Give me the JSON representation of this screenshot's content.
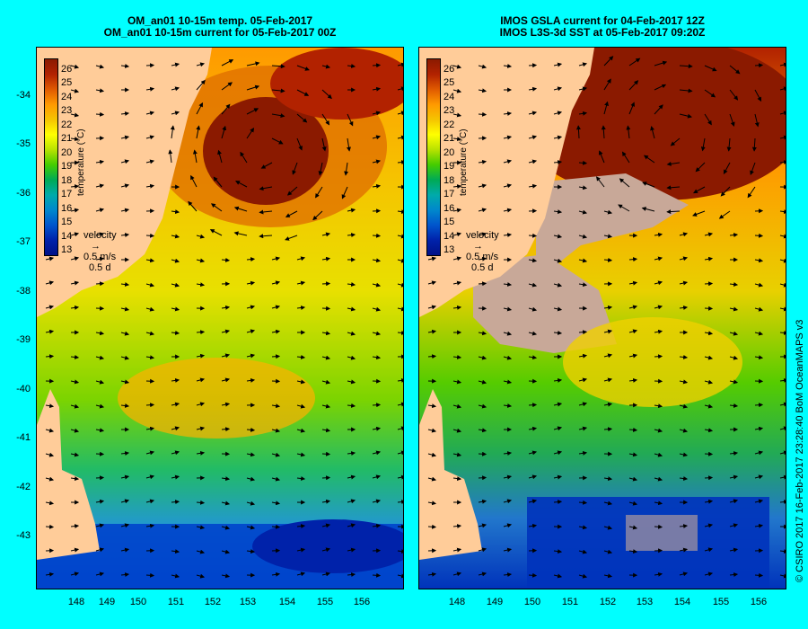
{
  "left": {
    "title_line1": "OM_an01 10-15m temp. 05-Feb-2017",
    "title_line2": "OM_an01 10-15m current for 05-Feb-2017 00Z"
  },
  "right": {
    "title_line1": "IMOS GSLA current for 04-Feb-2017 12Z",
    "title_line2": "IMOS L3S-3d SST at 05-Feb-2017 09:20Z"
  },
  "colorbar": {
    "labels": [
      "26",
      "25",
      "24",
      "23",
      "22",
      "21",
      "20",
      "19",
      "18",
      "17",
      "16",
      "15",
      "14",
      "13"
    ],
    "title": "temperature (°C)",
    "colors": [
      "#8b1a00",
      "#b22200",
      "#e05a00",
      "#ff9a00",
      "#f5c400",
      "#ffff00",
      "#b8e200",
      "#44cc00",
      "#00aa55",
      "#00aaaa",
      "#0088cc",
      "#0055cc",
      "#0022aa",
      "#001188"
    ]
  },
  "velocity": {
    "label": "velocity",
    "speed": "0.5 m/s",
    "time": "0.5 d"
  },
  "y_ticks": [
    "-34",
    "-35",
    "-36",
    "-37",
    "-38",
    "-39",
    "-40",
    "-41",
    "-42",
    "-43"
  ],
  "x_ticks": [
    "148",
    "149",
    "150",
    "151",
    "152",
    "153",
    "154",
    "155",
    "156"
  ],
  "credit": "© CSIRO 2017   16-Feb-2017 23:28:40 BoM OceanMAPS v3",
  "colors": {
    "background": "#00ffff",
    "land": "#ffcc99",
    "cloud": "#c8a898"
  }
}
